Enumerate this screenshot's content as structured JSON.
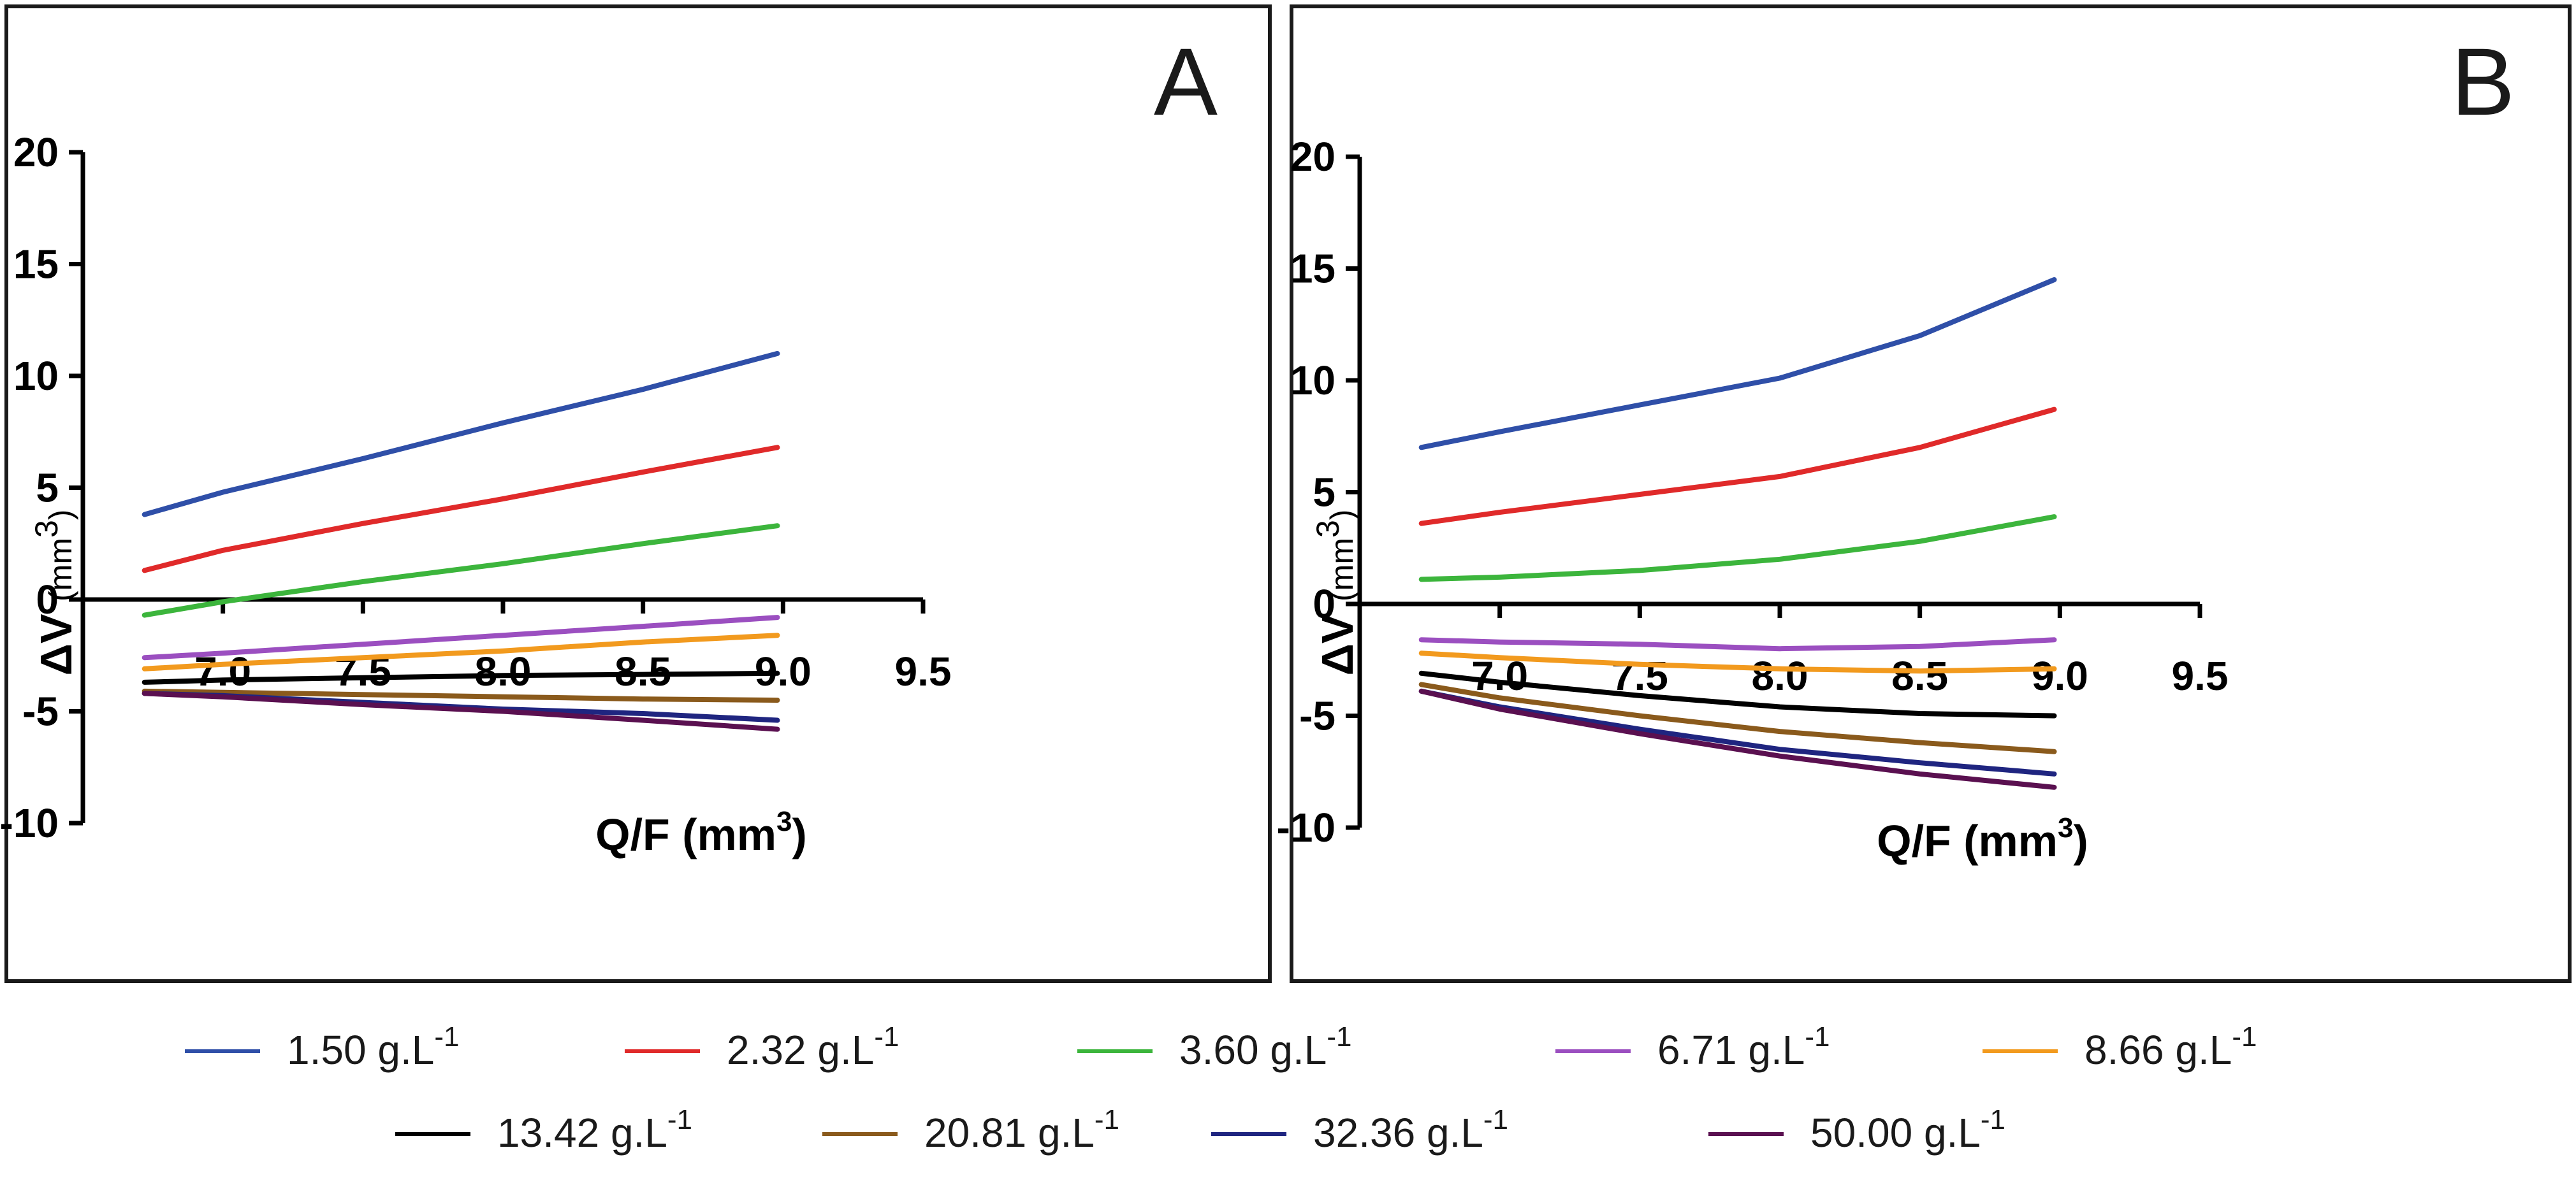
{
  "series_meta": [
    {
      "name": "1.50 g.L-1",
      "label": "1.50 g.L",
      "sup": "-1",
      "color": "#2f4fa8"
    },
    {
      "name": "2.32 g.L-1",
      "label": "2.32 g.L",
      "sup": "-1",
      "color": "#e02a2a"
    },
    {
      "name": "3.60 g.L-1",
      "label": "3.60 g.L",
      "sup": "-1",
      "color": "#3cb53c"
    },
    {
      "name": "6.71 g.L-1",
      "label": "6.71 g.L",
      "sup": "-1",
      "color": "#9b4fc0"
    },
    {
      "name": "8.66 g.L-1",
      "label": "8.66 g.L",
      "sup": "-1",
      "color": "#f29a1e"
    },
    {
      "name": "13.42 g.L-1",
      "label": "13.42 g.L",
      "sup": "-1",
      "color": "#000000"
    },
    {
      "name": "20.81 g.L-1",
      "label": "20.81 g.L",
      "sup": "-1",
      "color": "#8a5a1c"
    },
    {
      "name": "32.36 g.L-1",
      "label": "32.36 g.L",
      "sup": "-1",
      "color": "#1f2580"
    },
    {
      "name": "50.00 g.L-1",
      "label": "50.00 g.L",
      "sup": "-1",
      "color": "#5a1050"
    }
  ],
  "chart_data": [
    {
      "panel": "A",
      "type": "line",
      "title": "",
      "xlabel": "Q/F",
      "xlabel_unit": "(mm",
      "xlabel_unit_sup": "3",
      "xlabel_unit_close": ")",
      "ylabel": "ΔV",
      "ylabel_unit": "(mm",
      "ylabel_unit_sup": "3",
      "ylabel_unit_close": ")",
      "xlim": [
        6.5,
        9.5
      ],
      "ylim": [
        -10,
        20
      ],
      "xticks": [
        "7.0",
        "7.5",
        "8.0",
        "8.5",
        "9.0",
        "9.5"
      ],
      "yticks": [
        "20",
        "15",
        "10",
        "5",
        "0",
        "-5",
        "-10"
      ],
      "x": [
        6.72,
        7.0,
        7.5,
        8.0,
        8.5,
        8.98
      ],
      "series": [
        {
          "name": "1.50 g.L-1",
          "values": [
            3.8,
            4.8,
            6.3,
            7.9,
            9.4,
            11.0
          ]
        },
        {
          "name": "2.32 g.L-1",
          "values": [
            1.3,
            2.2,
            3.4,
            4.5,
            5.7,
            6.8
          ]
        },
        {
          "name": "3.60 g.L-1",
          "values": [
            -0.7,
            -0.1,
            0.8,
            1.6,
            2.5,
            3.3
          ]
        },
        {
          "name": "6.71 g.L-1",
          "values": [
            -2.6,
            -2.4,
            -2.0,
            -1.6,
            -1.2,
            -0.8
          ]
        },
        {
          "name": "8.66 g.L-1",
          "values": [
            -3.1,
            -2.9,
            -2.6,
            -2.3,
            -1.9,
            -1.6
          ]
        },
        {
          "name": "13.42 g.L-1",
          "values": [
            -3.7,
            -3.6,
            -3.5,
            -3.4,
            -3.35,
            -3.3
          ]
        },
        {
          "name": "20.81 g.L-1",
          "values": [
            -4.1,
            -4.15,
            -4.25,
            -4.35,
            -4.45,
            -4.5
          ]
        },
        {
          "name": "32.36 g.L-1",
          "values": [
            -4.2,
            -4.3,
            -4.6,
            -4.9,
            -5.1,
            -5.4
          ]
        },
        {
          "name": "50.00 g.L-1",
          "values": [
            -4.2,
            -4.35,
            -4.7,
            -5.0,
            -5.4,
            -5.8
          ]
        }
      ]
    },
    {
      "panel": "B",
      "type": "line",
      "title": "",
      "xlabel": "Q/F",
      "xlabel_unit": "(mm",
      "xlabel_unit_sup": "3",
      "xlabel_unit_close": ")",
      "ylabel": "ΔV",
      "ylabel_unit": "(mm",
      "ylabel_unit_sup": "3",
      "ylabel_unit_close": ")",
      "xlim": [
        6.5,
        9.5
      ],
      "ylim": [
        -10,
        20
      ],
      "xticks": [
        "7.0",
        "7.5",
        "8.0",
        "8.5",
        "9.0",
        "9.5"
      ],
      "yticks": [
        "20",
        "15",
        "10",
        "5",
        "0",
        "-5",
        "-10"
      ],
      "x": [
        6.72,
        7.0,
        7.5,
        8.0,
        8.5,
        8.98
      ],
      "series": [
        {
          "name": "1.50 g.L-1",
          "values": [
            7.0,
            7.7,
            8.9,
            10.1,
            12.0,
            14.5
          ]
        },
        {
          "name": "2.32 g.L-1",
          "values": [
            3.6,
            4.1,
            4.9,
            5.7,
            7.0,
            8.7
          ]
        },
        {
          "name": "3.60 g.L-1",
          "values": [
            1.1,
            1.2,
            1.5,
            2.0,
            2.8,
            3.9
          ]
        },
        {
          "name": "6.71 g.L-1",
          "values": [
            -1.6,
            -1.7,
            -1.8,
            -2.0,
            -1.9,
            -1.6
          ]
        },
        {
          "name": "8.66 g.L-1",
          "values": [
            -2.2,
            -2.4,
            -2.7,
            -2.9,
            -3.0,
            -2.9
          ]
        },
        {
          "name": "13.42 g.L-1",
          "values": [
            -3.1,
            -3.5,
            -4.1,
            -4.6,
            -4.9,
            -5.0
          ]
        },
        {
          "name": "20.81 g.L-1",
          "values": [
            -3.6,
            -4.2,
            -5.0,
            -5.7,
            -6.2,
            -6.6
          ]
        },
        {
          "name": "32.36 g.L-1",
          "values": [
            -3.9,
            -4.6,
            -5.6,
            -6.5,
            -7.1,
            -7.6
          ]
        },
        {
          "name": "50.00 g.L-1",
          "values": [
            -3.9,
            -4.7,
            -5.8,
            -6.8,
            -7.6,
            -8.2
          ]
        }
      ]
    }
  ]
}
